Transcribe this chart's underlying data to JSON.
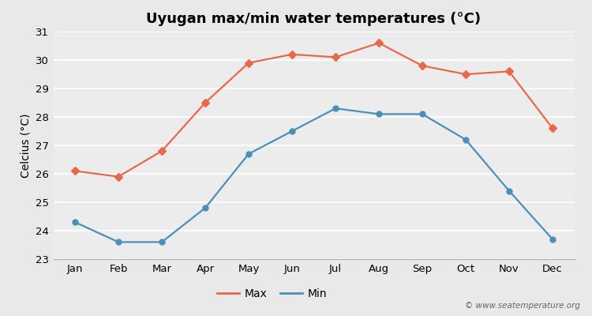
{
  "months": [
    "Jan",
    "Feb",
    "Mar",
    "Apr",
    "May",
    "Jun",
    "Jul",
    "Aug",
    "Sep",
    "Oct",
    "Nov",
    "Dec"
  ],
  "max_temps": [
    26.1,
    25.9,
    26.8,
    28.5,
    29.9,
    30.2,
    30.1,
    30.6,
    29.8,
    29.5,
    29.6,
    27.6
  ],
  "min_temps": [
    24.3,
    23.6,
    23.6,
    24.8,
    26.7,
    27.5,
    28.3,
    28.1,
    28.1,
    27.2,
    25.4,
    23.7
  ],
  "max_color": "#e8694a",
  "min_color": "#4a90b8",
  "title": "Uyugan max/min water temperatures (°C)",
  "ylabel": "Celcius (°C)",
  "ylim": [
    23,
    31
  ],
  "yticks": [
    23,
    24,
    25,
    26,
    27,
    28,
    29,
    30,
    31
  ],
  "background_color": "#e9e9e9",
  "plot_bg_color": "#ececec",
  "grid_color": "#ffffff",
  "legend_labels": [
    "Max",
    "Min"
  ],
  "watermark": "© www.seatemperature.org",
  "title_fontsize": 13,
  "label_fontsize": 10,
  "tick_fontsize": 9.5,
  "watermark_fontsize": 7.5
}
